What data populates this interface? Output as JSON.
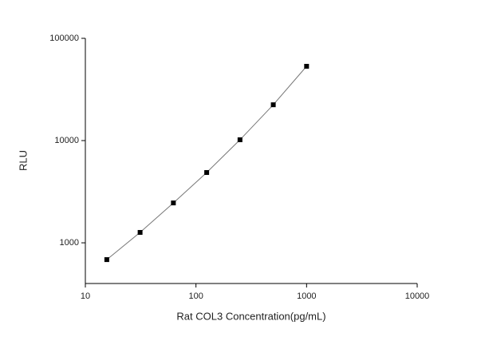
{
  "chart_data": {
    "type": "scatter",
    "x_label": "Rat COL3 Concentration(pg/mL)",
    "y_label": "RLU",
    "x": [
      15.625,
      31.25,
      62.5,
      125,
      250,
      500,
      1000
    ],
    "series": [
      {
        "color": "#000000",
        "values": [
          685,
          1264,
          2455,
          4870,
          10180,
          22400,
          53300
        ]
      }
    ],
    "line": true,
    "line_color": "#777777",
    "x_log": true,
    "y_log": true,
    "xlim": [
      10,
      10000
    ],
    "ylim": [
      400,
      100000
    ],
    "xticks": [
      10,
      100,
      1000,
      10000
    ],
    "yticks": [
      1000,
      10000,
      100000
    ],
    "grid": false
  }
}
